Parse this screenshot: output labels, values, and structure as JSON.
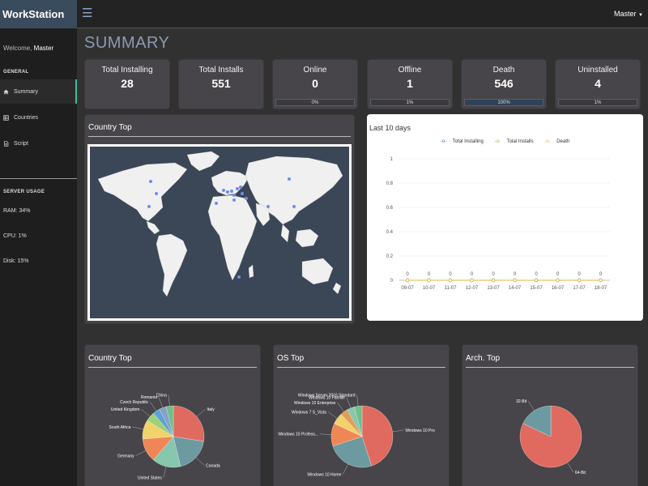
{
  "app": {
    "brand": "WorkStation",
    "welcome_prefix": "Welcome,",
    "user": "Master"
  },
  "sidebar": {
    "general_title": "GENERAL",
    "items": [
      {
        "label": "Summary",
        "icon": "home-icon"
      },
      {
        "label": "Countries",
        "icon": "table-icon"
      },
      {
        "label": "Script",
        "icon": "document-icon"
      }
    ],
    "server_title": "SERVER USAGE",
    "stats": [
      "RAM: 34%",
      "CPU: 1%",
      "Disk: 15%"
    ]
  },
  "topbar": {
    "user": "Master"
  },
  "page": {
    "title": "SUMMARY"
  },
  "stats": [
    {
      "label": "Total Installing",
      "value": "28"
    },
    {
      "label": "Total Installs",
      "value": "551"
    },
    {
      "label": "Online",
      "value": "0",
      "progress": "0%",
      "fraction": 0
    },
    {
      "label": "Offline",
      "value": "1",
      "progress": "1%",
      "fraction": 0.01
    },
    {
      "label": "Death",
      "value": "546",
      "progress": "100%",
      "fraction": 1
    },
    {
      "label": "Uninstalled",
      "value": "4",
      "progress": "1%",
      "fraction": 0.01
    }
  ],
  "map_panel": {
    "title": "Country Top"
  },
  "line_chart": {
    "title": "Last 10 days",
    "legend": [
      "Total Installing",
      "Total Installs",
      "Death"
    ]
  },
  "bottom_panels": {
    "country": "Country Top",
    "os": "OS Top",
    "arch": "Arch. Top"
  },
  "colors": {
    "accent": "#3bbf9b",
    "brand": "#3a4b5d",
    "map": "#3b4657",
    "pie_red": "#e06a5f",
    "pie_teal": "#6c9aa0"
  },
  "chart_data": [
    {
      "type": "line",
      "title": "Last 10 days",
      "x": [
        "09-07",
        "10-07",
        "11-07",
        "12-07",
        "13-07",
        "14-07",
        "15-07",
        "16-07",
        "17-07",
        "18-07"
      ],
      "series": [
        {
          "name": "Total Installing",
          "values": [
            0,
            0,
            0,
            0,
            0,
            0,
            0,
            0,
            0,
            0
          ]
        },
        {
          "name": "Total Installs",
          "values": [
            0,
            0,
            0,
            0,
            0,
            0,
            0,
            0,
            0,
            0
          ]
        },
        {
          "name": "Death",
          "values": [
            0,
            0,
            0,
            0,
            0,
            0,
            0,
            0,
            0,
            0
          ]
        }
      ],
      "ylim": [
        0,
        1
      ],
      "yticks": [
        "0",
        "0.2",
        "0.4",
        "0.6",
        "0.8",
        "1"
      ],
      "grid": true,
      "legend": "top"
    },
    {
      "type": "pie",
      "title": "Country Top",
      "labels": [
        "Italy",
        "Canada",
        "United States",
        "Germany",
        "South Africa",
        "United Kingdom",
        "Czech Republic",
        "Romania",
        "China"
      ],
      "values": [
        22,
        15,
        12,
        10,
        8,
        4,
        3,
        3,
        3
      ]
    },
    {
      "type": "pie",
      "title": "OS Top",
      "labels": [
        "Windows 10 Pro",
        "Windows 10 Home",
        "Windows 10 Profess...",
        "Windows 7 S_Vista",
        "Windows 10 Enterprise",
        "Windows 10 Famille",
        "Windows Server 2016 Standard"
      ],
      "values": [
        45,
        25,
        12,
        6,
        4,
        4,
        4
      ]
    },
    {
      "type": "pie",
      "title": "Arch. Top",
      "labels": [
        "64-Bit",
        "32-Bit"
      ],
      "values": [
        82,
        18
      ]
    }
  ]
}
